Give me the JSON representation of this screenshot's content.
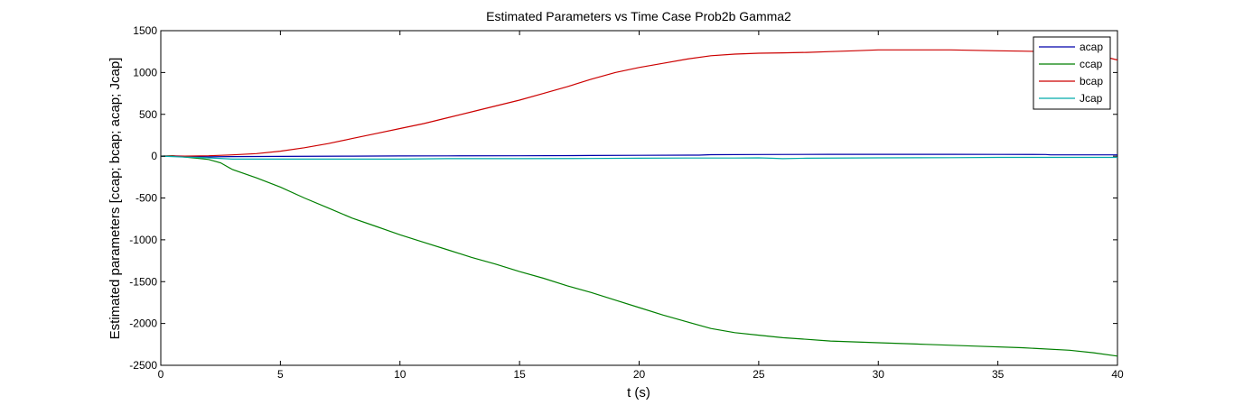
{
  "chart_data": {
    "type": "line",
    "title": "Estimated Parameters vs Time Case Prob2b Gamma2",
    "xlabel": "t (s)",
    "ylabel": "Estimated parameters [ccap; bcap; acap; Jcap]",
    "xlim": [
      0,
      40
    ],
    "ylim": [
      -2500,
      1500
    ],
    "xticks": [
      0,
      5,
      10,
      15,
      20,
      25,
      30,
      35,
      40
    ],
    "yticks": [
      -2500,
      -2000,
      -1500,
      -1000,
      -500,
      0,
      500,
      1000,
      1500
    ],
    "grid": false,
    "legend_position": "top-right",
    "series": [
      {
        "name": "acap",
        "color": "#0000aa",
        "x": [
          0,
          0.5,
          1,
          2,
          3,
          5,
          8,
          10,
          12,
          15,
          18,
          20,
          22.5,
          23,
          25,
          28,
          30,
          33,
          35,
          37,
          37.2,
          40
        ],
        "y": [
          0,
          2,
          0,
          -8,
          -5,
          -3,
          0,
          2,
          3,
          5,
          8,
          10,
          12,
          18,
          20,
          22,
          22,
          22,
          21,
          20,
          15,
          15
        ]
      },
      {
        "name": "ccap",
        "color": "#007f00",
        "x": [
          0,
          0.5,
          1,
          1.5,
          2,
          2.5,
          3,
          4,
          5,
          6,
          7,
          8,
          9,
          10,
          11,
          12,
          13,
          14,
          15,
          16,
          17,
          18,
          19,
          20,
          21,
          22,
          23,
          24,
          25,
          26,
          27,
          28,
          30,
          32,
          34,
          36,
          38,
          39,
          40
        ],
        "y": [
          0,
          5,
          -10,
          -25,
          -40,
          -80,
          -160,
          -260,
          -370,
          -500,
          -620,
          -740,
          -840,
          -940,
          -1030,
          -1120,
          -1210,
          -1290,
          -1380,
          -1460,
          -1550,
          -1630,
          -1720,
          -1810,
          -1900,
          -1980,
          -2060,
          -2110,
          -2140,
          -2170,
          -2190,
          -2210,
          -2230,
          -2250,
          -2270,
          -2290,
          -2320,
          -2350,
          -2390
        ]
      },
      {
        "name": "bcap",
        "color": "#cc0000",
        "x": [
          0,
          1,
          2,
          3,
          4,
          5,
          6,
          7,
          8,
          9,
          10,
          11,
          12,
          13,
          14,
          15,
          16,
          17,
          18,
          19,
          20,
          21,
          22,
          23,
          24,
          25,
          26,
          27,
          28,
          29,
          30,
          31,
          32,
          33,
          34,
          35,
          36,
          37,
          38,
          39,
          40
        ],
        "y": [
          0,
          0,
          5,
          15,
          30,
          60,
          100,
          150,
          210,
          270,
          330,
          390,
          460,
          530,
          600,
          670,
          750,
          830,
          920,
          1000,
          1060,
          1110,
          1160,
          1200,
          1220,
          1230,
          1235,
          1240,
          1250,
          1260,
          1270,
          1270,
          1270,
          1270,
          1265,
          1260,
          1255,
          1250,
          1240,
          1220,
          1150
        ]
      },
      {
        "name": "Jcap",
        "color": "#00aaaa",
        "x": [
          0,
          0.5,
          1,
          1.5,
          2,
          3,
          5,
          8,
          10,
          12,
          15,
          18,
          20,
          22,
          24,
          25,
          25.5,
          26,
          27,
          30,
          33,
          35,
          37,
          40
        ],
        "y": [
          0,
          -5,
          -10,
          -15,
          -20,
          -35,
          -35,
          -35,
          -35,
          -30,
          -30,
          -28,
          -25,
          -22,
          -22,
          -20,
          -25,
          -30,
          -25,
          -20,
          -18,
          -15,
          -15,
          -15
        ]
      }
    ]
  }
}
